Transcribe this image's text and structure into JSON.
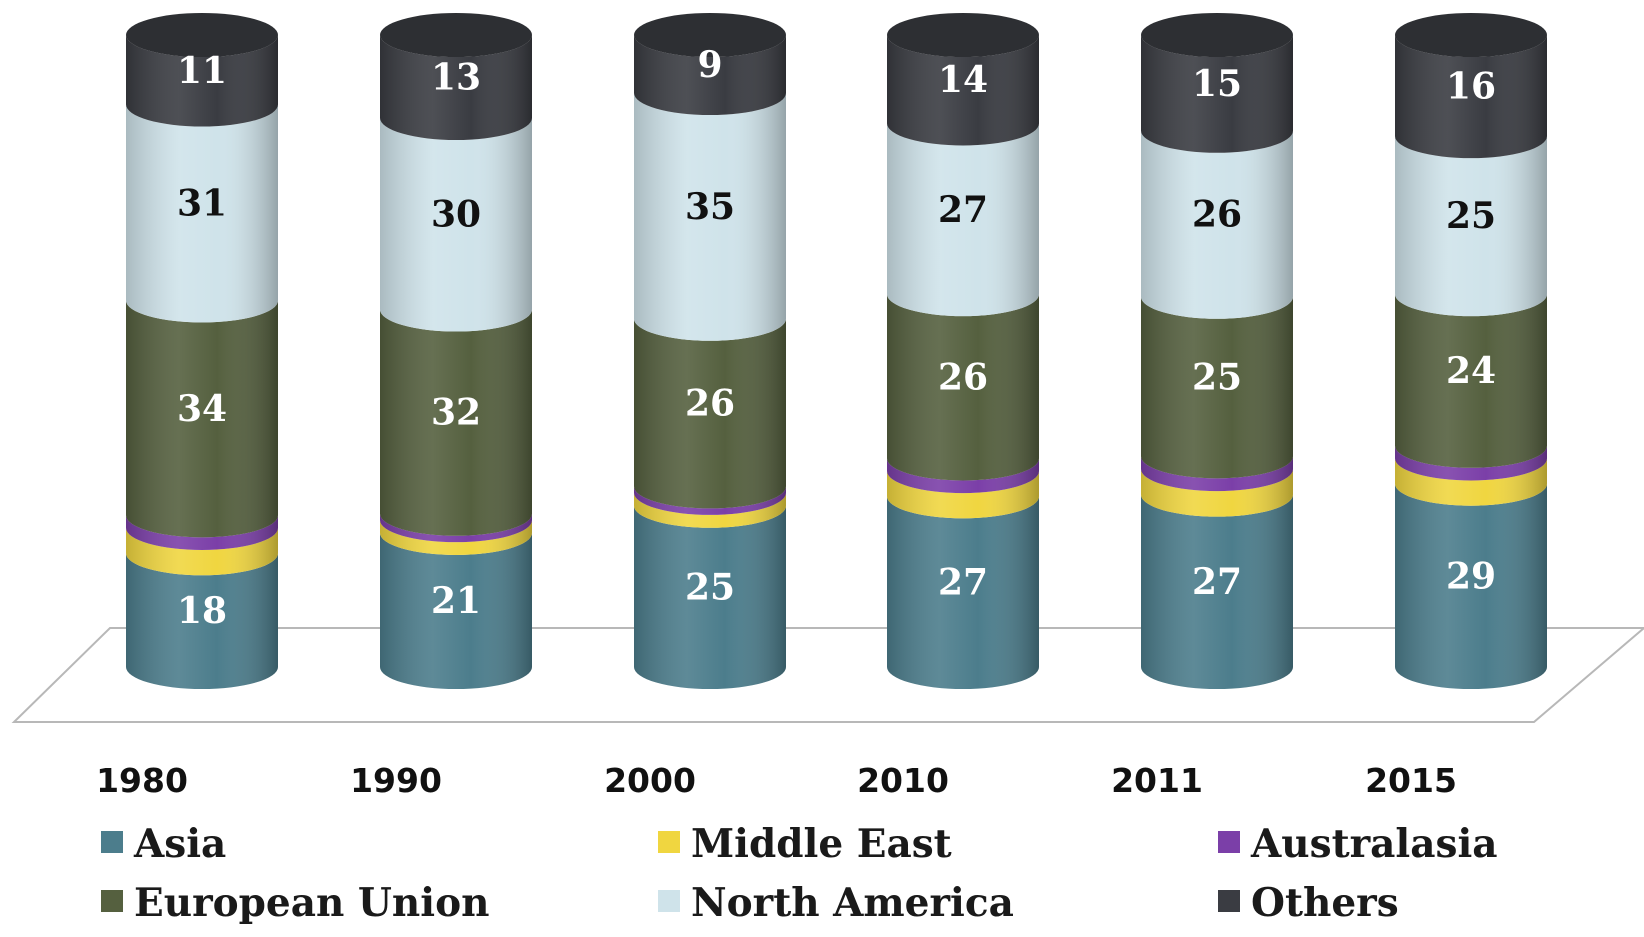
{
  "chart_data": {
    "type": "bar",
    "stacked": true,
    "categories": [
      "1980",
      "1990",
      "2000",
      "2010",
      "2011",
      "2015"
    ],
    "series": [
      {
        "name": "Asia",
        "color": "#4c7d8c",
        "values": [
          18,
          21,
          25,
          27,
          27,
          29
        ],
        "labels": [
          "18",
          "21",
          "25",
          "27",
          "27",
          "29"
        ]
      },
      {
        "name": "Middle East",
        "color": "#f0d640",
        "values": [
          4,
          2,
          2,
          4,
          4,
          4
        ],
        "labels": [
          "",
          "",
          "",
          "",
          "",
          ""
        ]
      },
      {
        "name": "Australasia",
        "color": "#7b3fa8",
        "values": [
          2,
          1,
          1,
          2,
          2,
          2
        ],
        "labels": [
          "",
          "",
          "",
          "",
          "",
          ""
        ]
      },
      {
        "name": "European Union",
        "color": "#55603f",
        "values": [
          34,
          32,
          26,
          26,
          25,
          24
        ],
        "labels": [
          "34",
          "32",
          "26",
          "26",
          "25",
          "24"
        ]
      },
      {
        "name": "North America",
        "color": "#cfe3ea",
        "values": [
          31,
          30,
          35,
          27,
          26,
          25
        ],
        "labels": [
          "31",
          "30",
          "35",
          "27",
          "26",
          "25"
        ]
      },
      {
        "name": "Others",
        "color": "#3a3c42",
        "values": [
          11,
          13,
          9,
          14,
          15,
          16
        ],
        "labels": [
          "11",
          "13",
          "9",
          "14",
          "15",
          "16"
        ]
      }
    ],
    "legend_position": "bottom",
    "grid": false,
    "style": "3d-cylinder"
  }
}
